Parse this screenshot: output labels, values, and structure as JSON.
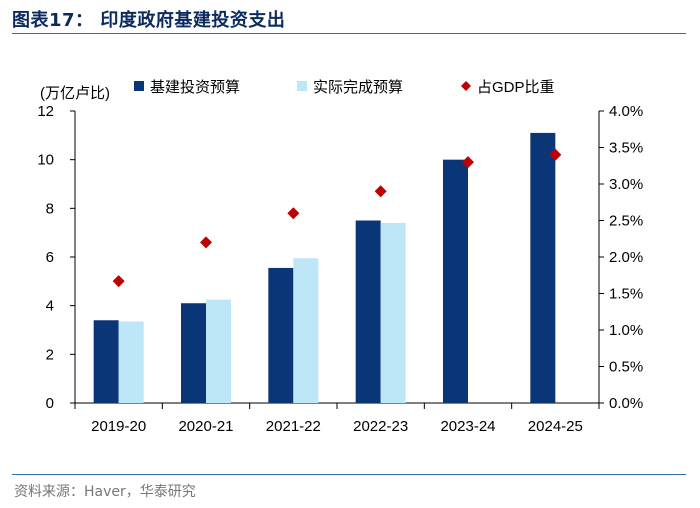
{
  "header": {
    "title": "图表17： 印度政府基建投资支出"
  },
  "footer": {
    "source": "资料来源：Haver，华泰研究"
  },
  "chart_data": {
    "type": "bar",
    "categories": [
      "2019-20",
      "2020-21",
      "2021-22",
      "2022-23",
      "2023-24",
      "2024-25"
    ],
    "left_axis_unit": "(万亿卢比)",
    "ylim": [
      0,
      12
    ],
    "yticks": [
      0,
      2,
      4,
      6,
      8,
      10,
      12
    ],
    "y2lim": [
      0,
      4.0
    ],
    "y2ticks": [
      "0.0%",
      "0.5%",
      "1.0%",
      "1.5%",
      "2.0%",
      "2.5%",
      "3.0%",
      "3.5%",
      "4.0%"
    ],
    "legend_position": "top",
    "series": [
      {
        "name": "基建投资预算",
        "type": "bar",
        "axis": "left",
        "color": "#0a3576",
        "values": [
          3.4,
          4.1,
          5.55,
          7.5,
          10.0,
          11.1
        ]
      },
      {
        "name": "实际完成预算",
        "type": "bar",
        "axis": "left",
        "color": "#bde6f7",
        "values": [
          3.35,
          4.25,
          5.95,
          7.4,
          null,
          null
        ]
      },
      {
        "name": "占GDP比重",
        "type": "scatter",
        "axis": "right",
        "marker": "diamond",
        "color": "#c00000",
        "values": [
          1.67,
          2.2,
          2.6,
          2.9,
          3.3,
          3.4
        ],
        "unit": "%"
      }
    ]
  }
}
